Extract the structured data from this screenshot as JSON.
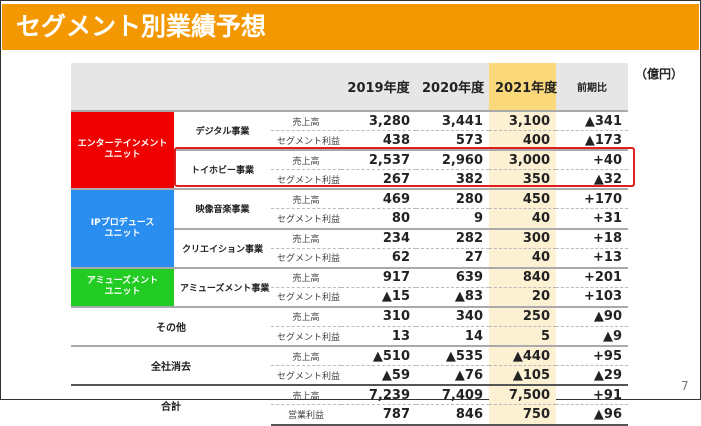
{
  "title": "セグメント別業績予想",
  "unit": "（億円）",
  "page_number": "7",
  "columns": [
    "2019年度",
    "2020年度",
    "2021年度",
    "前期比"
  ],
  "colors": {
    "title_bar": "#f39800",
    "entertainment": "#f00000",
    "ip": "#2a8ef0",
    "amusement": "#22cc22",
    "highlight_2021": "#fbd97a",
    "box": "#e02020"
  },
  "groups": {
    "entertainment": "エンターテインメント\nユニット",
    "ip": "IPプロデュース\nユニット",
    "amusement": "アミューズメント\nユニット"
  },
  "rows": [
    {
      "biz": "デジタル事業",
      "items": [
        {
          "m": "売上高",
          "v": [
            "3,280",
            "3,441",
            "3,100",
            "▲341"
          ]
        },
        {
          "m": "セグメント利益",
          "v": [
            "438",
            "573",
            "400",
            "▲173"
          ]
        }
      ]
    },
    {
      "biz": "トイホビー事業",
      "items": [
        {
          "m": "売上高",
          "v": [
            "2,537",
            "2,960",
            "3,000",
            "+40"
          ]
        },
        {
          "m": "セグメント利益",
          "v": [
            "267",
            "382",
            "350",
            "▲32"
          ]
        }
      ]
    },
    {
      "biz": "映像音楽事業",
      "items": [
        {
          "m": "売上高",
          "v": [
            "469",
            "280",
            "450",
            "+170"
          ]
        },
        {
          "m": "セグメント利益",
          "v": [
            "80",
            "9",
            "40",
            "+31"
          ]
        }
      ]
    },
    {
      "biz": "クリエイション事業",
      "items": [
        {
          "m": "売上高",
          "v": [
            "234",
            "282",
            "300",
            "+18"
          ]
        },
        {
          "m": "セグメント利益",
          "v": [
            "62",
            "27",
            "40",
            "+13"
          ]
        }
      ]
    },
    {
      "biz": "アミューズメント事業",
      "items": [
        {
          "m": "売上高",
          "v": [
            "917",
            "639",
            "840",
            "+201"
          ]
        },
        {
          "m": "セグメント利益",
          "v": [
            "▲15",
            "▲83",
            "20",
            "+103"
          ]
        }
      ]
    },
    {
      "biz": "その他",
      "items": [
        {
          "m": "売上高",
          "v": [
            "310",
            "340",
            "250",
            "▲90"
          ]
        },
        {
          "m": "セグメント利益",
          "v": [
            "13",
            "14",
            "5",
            "▲9"
          ]
        }
      ]
    },
    {
      "biz": "全社消去",
      "items": [
        {
          "m": "売上高",
          "v": [
            "▲510",
            "▲535",
            "▲440",
            "+95"
          ]
        },
        {
          "m": "セグメント利益",
          "v": [
            "▲59",
            "▲76",
            "▲105",
            "▲29"
          ]
        }
      ]
    },
    {
      "biz": "合計",
      "items": [
        {
          "m": "売上高",
          "v": [
            "7,239",
            "7,409",
            "7,500",
            "+91"
          ]
        },
        {
          "m": "営業利益",
          "v": [
            "787",
            "846",
            "750",
            "▲96"
          ]
        }
      ]
    }
  ]
}
